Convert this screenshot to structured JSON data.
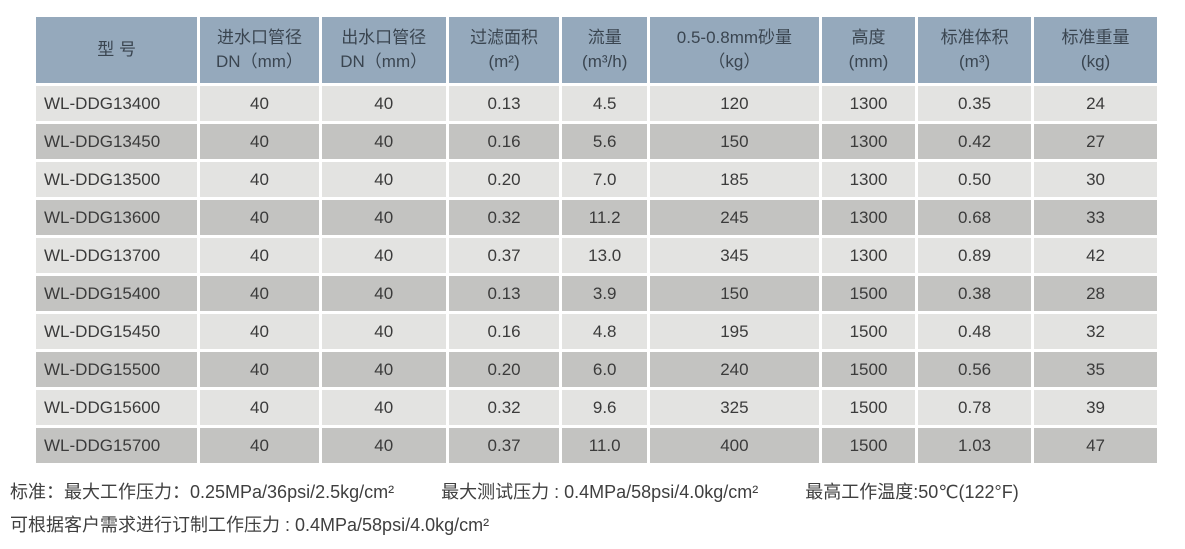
{
  "colors": {
    "header_bg": "#95a9bc",
    "row_light": "#e3e3e1",
    "row_dark": "#c3c3c1",
    "header_text": "#3a4550",
    "cell_text": "#3b3b3b"
  },
  "table": {
    "columns": [
      {
        "line1": "型  号",
        "line2": ""
      },
      {
        "line1": "进水口管径",
        "line2": "DN（mm）"
      },
      {
        "line1": "出水口管径",
        "line2": "DN（mm）"
      },
      {
        "line1": "过滤面积",
        "line2": "(m²)"
      },
      {
        "line1": "流量",
        "line2": "(m³/h)"
      },
      {
        "line1": "0.5-0.8mm砂量",
        "line2": "（kg）"
      },
      {
        "line1": "高度",
        "line2": "(mm)"
      },
      {
        "line1": "标准体积",
        "line2": "(m³)"
      },
      {
        "line1": "标准重量",
        "line2": "(kg)"
      }
    ],
    "rows": [
      [
        "WL-DDG13400",
        "40",
        "40",
        "0.13",
        "4.5",
        "120",
        "1300",
        "0.35",
        "24"
      ],
      [
        "WL-DDG13450",
        "40",
        "40",
        "0.16",
        "5.6",
        "150",
        "1300",
        "0.42",
        "27"
      ],
      [
        "WL-DDG13500",
        "40",
        "40",
        "0.20",
        "7.0",
        "185",
        "1300",
        "0.50",
        "30"
      ],
      [
        "WL-DDG13600",
        "40",
        "40",
        "0.32",
        "11.2",
        "245",
        "1300",
        "0.68",
        "33"
      ],
      [
        "WL-DDG13700",
        "40",
        "40",
        "0.37",
        "13.0",
        "345",
        "1300",
        "0.89",
        "42"
      ],
      [
        "WL-DDG15400",
        "40",
        "40",
        "0.13",
        "3.9",
        "150",
        "1500",
        "0.38",
        "28"
      ],
      [
        "WL-DDG15450",
        "40",
        "40",
        "0.16",
        "4.8",
        "195",
        "1500",
        "0.48",
        "32"
      ],
      [
        "WL-DDG15500",
        "40",
        "40",
        "0.20",
        "6.0",
        "240",
        "1500",
        "0.56",
        "35"
      ],
      [
        "WL-DDG15600",
        "40",
        "40",
        "0.32",
        "9.6",
        "325",
        "1500",
        "0.78",
        "39"
      ],
      [
        "WL-DDG15700",
        "40",
        "40",
        "0.37",
        "11.0",
        "400",
        "1500",
        "1.03",
        "47"
      ]
    ]
  },
  "notes": {
    "line1": [
      "标准：最大工作压力：0.25MPa/36psi/2.5kg/cm²",
      "最大测试压力 : 0.4MPa/58psi/4.0kg/cm²",
      "最高工作温度:50℃(122°F)"
    ],
    "line2": "可根据客户需求进行订制工作压力 : 0.4MPa/58psi/4.0kg/cm²"
  }
}
